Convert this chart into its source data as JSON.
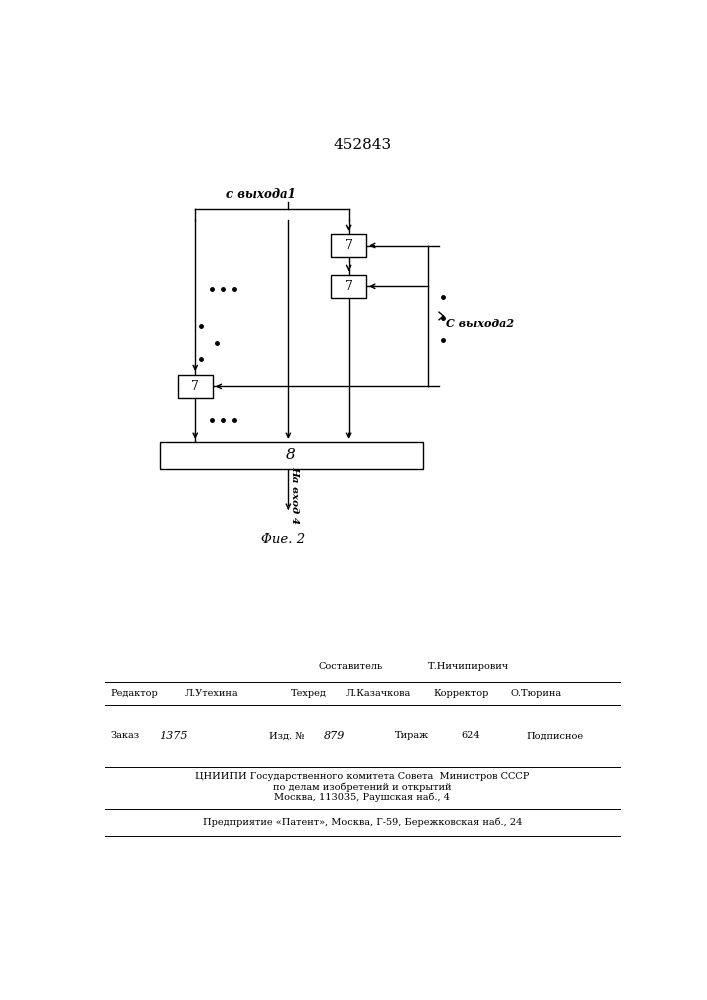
{
  "title": "452843",
  "fig_label": "Φие. 2",
  "label_vyhod1": "с выхода1",
  "label_vyhod2": "С выхода2",
  "label_vhod": "На вход 4",
  "block8_label": "8",
  "block7_label": "7",
  "bg_color": "#ffffff",
  "footer_sostavitel": "Составитель",
  "footer_sostavitel_name": "Т.Ничипирович",
  "footer_redaktor": "Редактор",
  "footer_redaktor_name": "Л.Утехина",
  "footer_tehred": "Техред",
  "footer_tehred_name": "Л.Казачкова",
  "footer_korrektor": "Корректор",
  "footer_korrektor_name": "О.Тюрина",
  "footer_zakaz": "Заказ",
  "footer_zakaz_num": "1375",
  "footer_izd": "Изд. №",
  "footer_izd_num": "879",
  "footer_tirazh": "Тираж",
  "footer_tirazh_num": "624",
  "footer_podpisnoe": "Подписное",
  "footer_cniip1": "ЦНИИПИ Государственного комитета Совета  Министров СССР",
  "footer_cniip2": "по делам изобретений и открытий",
  "footer_cniip3": "Москва, 113035, Раушская наб., 4",
  "footer_patent": "Предприятие «Патент», Москва, Г-59, Бережковская наб., 24"
}
